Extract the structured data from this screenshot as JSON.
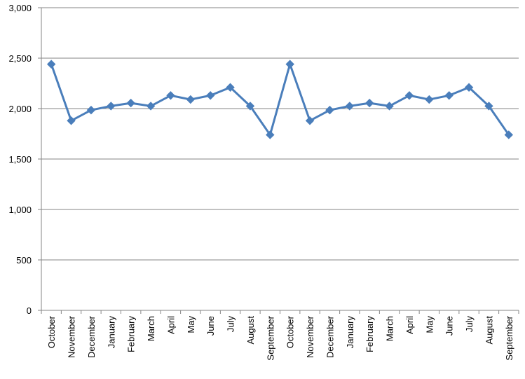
{
  "chart_data": {
    "type": "line",
    "categories": [
      "October",
      "November",
      "December",
      "January",
      "February",
      "March",
      "April",
      "May",
      "June",
      "July",
      "August",
      "September",
      "October",
      "November",
      "December",
      "January",
      "February",
      "March",
      "April",
      "May",
      "June",
      "July",
      "August",
      "September"
    ],
    "series": [
      {
        "values": [
          2440,
          1880,
          1985,
          2025,
          2055,
          2025,
          2130,
          2090,
          2130,
          2210,
          2025,
          1740,
          2440,
          1880,
          1985,
          2025,
          2055,
          2025,
          2130,
          2090,
          2130,
          2210,
          2025,
          1740
        ],
        "color": "#4a7ebb",
        "marker": "diamond"
      }
    ],
    "yticks": [
      "0",
      "500",
      "1,000",
      "1,500",
      "2,000",
      "2,500",
      "3,000"
    ],
    "ylim": [
      0,
      3000
    ],
    "grid": "horizontal",
    "legend": "none",
    "title": "",
    "xlabel": "",
    "ylabel": ""
  }
}
